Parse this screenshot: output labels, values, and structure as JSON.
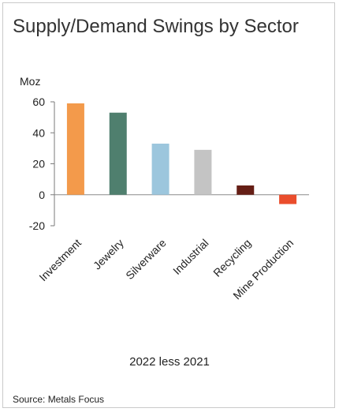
{
  "chart_data": {
    "type": "bar",
    "title": "Supply/Demand Swings by Sector",
    "ylabel": "Moz",
    "xlabel": "2022 less 2021",
    "source": "Source: Metals Focus",
    "categories": [
      "Investment",
      "Jewelry",
      "Silverware",
      "Industrial",
      "Recycling",
      "Mine Production"
    ],
    "values": [
      59,
      53,
      33,
      29,
      6,
      -6
    ],
    "colors": [
      "#f39a4b",
      "#4f7f6e",
      "#9cc6dd",
      "#c4c4c4",
      "#651e15",
      "#ea4d2c"
    ],
    "ylim": [
      -20,
      60
    ],
    "yticks": [
      60,
      40,
      20,
      0,
      -20
    ],
    "grid": false,
    "legend": "none"
  }
}
